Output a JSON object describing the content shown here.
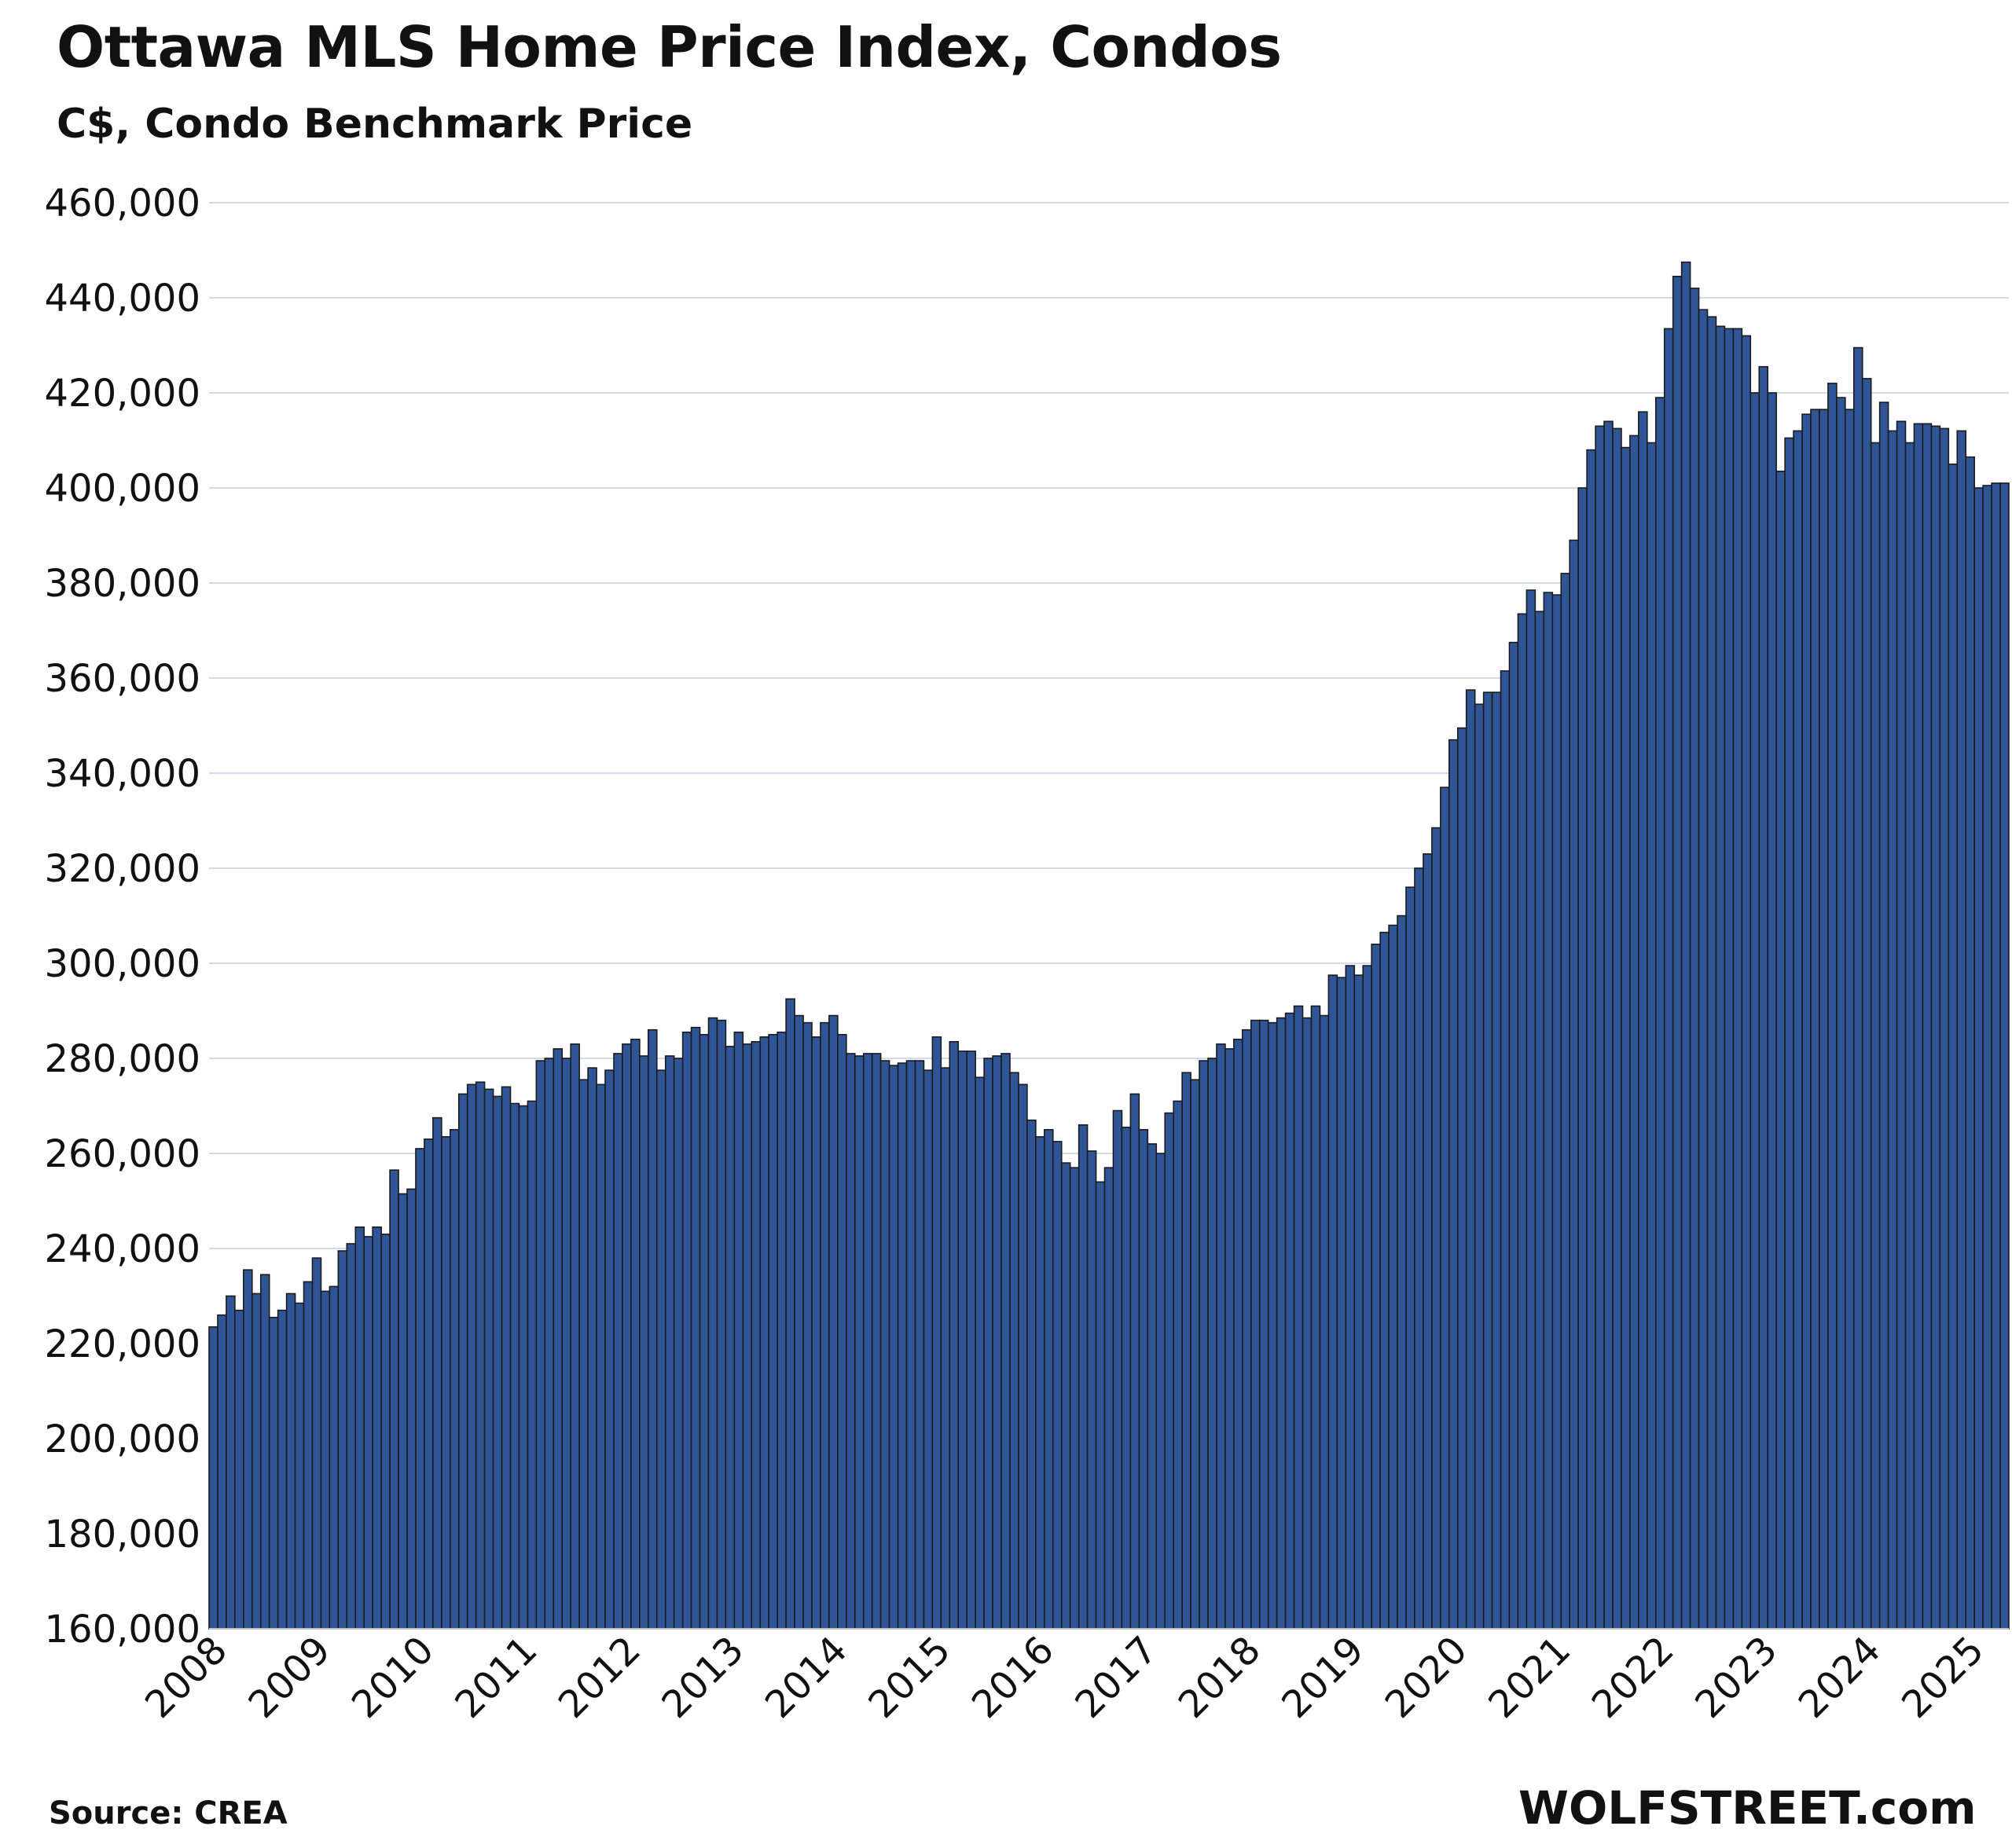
{
  "chart_data": {
    "type": "bar",
    "title": "Ottawa MLS Home Price Index, Condos",
    "subtitle": "C$, Condo Benchmark Price",
    "xlabel": "",
    "ylabel": "",
    "ylim": [
      160000,
      460000
    ],
    "yticks": [
      160000,
      180000,
      200000,
      220000,
      240000,
      260000,
      280000,
      300000,
      320000,
      340000,
      360000,
      380000,
      400000,
      420000,
      440000,
      460000
    ],
    "ytick_labels": [
      "160,000",
      "180,000",
      "200,000",
      "220,000",
      "240,000",
      "260,000",
      "280,000",
      "300,000",
      "320,000",
      "340,000",
      "360,000",
      "380,000",
      "400,000",
      "420,000",
      "440,000",
      "460,000"
    ],
    "xtick_labels": [
      "2008",
      "2009",
      "2010",
      "2011",
      "2012",
      "2013",
      "2014",
      "2015",
      "2016",
      "2017",
      "2018",
      "2019",
      "2020",
      "2021",
      "2022",
      "2023",
      "2024",
      "2025"
    ],
    "grid": true,
    "bar_color": "#2f5597",
    "bar_edge_color": "#1b1b1b",
    "series": [
      {
        "name": "Condo Benchmark Price",
        "start": "2008-01",
        "frequency": "monthly",
        "values": [
          223500,
          226000,
          230000,
          227000,
          235500,
          230500,
          234500,
          225500,
          227000,
          230500,
          228500,
          233000,
          238000,
          231000,
          232000,
          239500,
          241000,
          244500,
          242500,
          244500,
          243000,
          256500,
          251500,
          252500,
          261000,
          263000,
          267500,
          263500,
          265000,
          272500,
          274500,
          275000,
          273500,
          272000,
          274000,
          270500,
          270000,
          271000,
          279500,
          280000,
          282000,
          280000,
          283000,
          275500,
          278000,
          274500,
          277500,
          281000,
          283000,
          284000,
          280500,
          286000,
          277500,
          280500,
          280000,
          285500,
          286500,
          285000,
          288500,
          288000,
          282500,
          285500,
          283000,
          283500,
          284500,
          285000,
          285500,
          292500,
          289000,
          287500,
          284500,
          287500,
          289000,
          285000,
          281000,
          280500,
          281000,
          281000,
          279500,
          278500,
          279000,
          279500,
          279500,
          277500,
          284500,
          278000,
          283500,
          281500,
          281500,
          276000,
          280000,
          280500,
          281000,
          277000,
          274500,
          267000,
          263500,
          265000,
          262500,
          258000,
          257000,
          266000,
          260500,
          254000,
          257000,
          269000,
          265500,
          272500,
          265000,
          262000,
          260000,
          268500,
          271000,
          277000,
          275500,
          279500,
          280000,
          283000,
          282000,
          284000,
          286000,
          288000,
          288000,
          287500,
          288500,
          289500,
          291000,
          288500,
          291000,
          289000,
          297500,
          297000,
          299500,
          297500,
          299500,
          304000,
          306500,
          308000,
          310000,
          316000,
          320000,
          323000,
          328500,
          337000,
          347000,
          349500,
          357500,
          354500,
          357000,
          357000,
          361500,
          367500,
          373500,
          378500,
          374000,
          378000,
          377500,
          382000,
          389000,
          400000,
          408000,
          413000,
          414000,
          412500,
          408500,
          411000,
          416000,
          409500,
          419000,
          433500,
          444500,
          447500,
          442000,
          437500,
          436000,
          434000,
          433500,
          433500,
          432000,
          420000,
          425500,
          420000,
          403500,
          410500,
          412000,
          415500,
          416500,
          416500,
          422000,
          419000,
          416500,
          429500,
          423000,
          409500,
          418000,
          412000,
          414000,
          409500,
          413500,
          413500,
          413000,
          412500,
          405000,
          412000,
          406500,
          400000,
          400500,
          401000,
          401000
        ]
      }
    ]
  },
  "footer": {
    "source": "Source: CREA",
    "brand": "WOLFSTREET.com"
  }
}
